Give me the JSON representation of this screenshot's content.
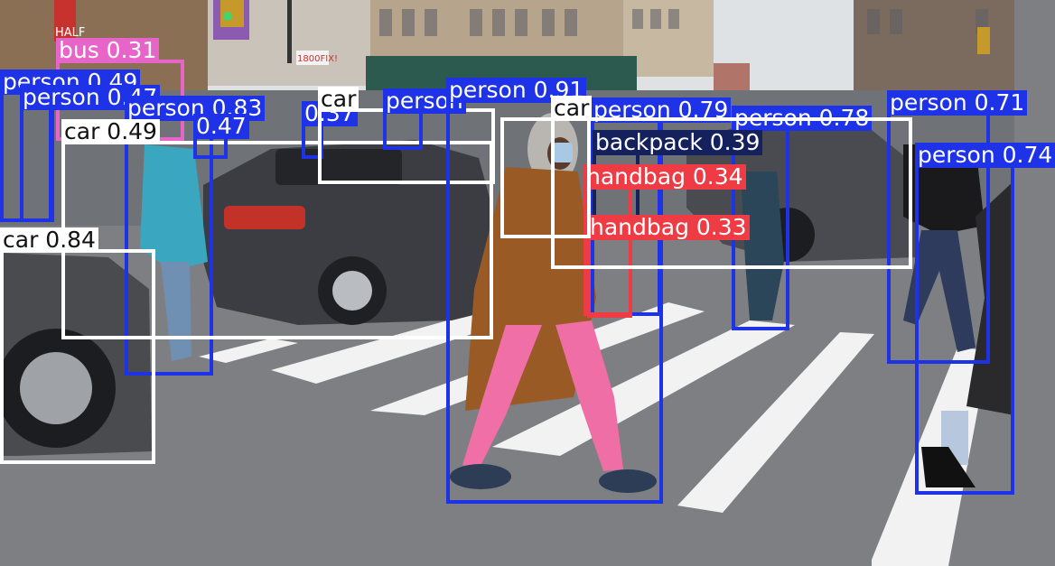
{
  "image": {
    "description_colors": {
      "sky": "#dfe2e5",
      "asphalt": "#7d7f82",
      "stripes": "#f2f2f2"
    }
  },
  "signs": {
    "storefront_1": "HALF",
    "storefront_2": "1800FIX!"
  },
  "detections": [
    {
      "id": "d1",
      "label": "bus 0.31",
      "color": "#e765c9",
      "text": "light",
      "box": "bus-1"
    },
    {
      "id": "d2",
      "label": "person 0.49",
      "color": "#1e32e8",
      "text": "light",
      "box": "person-1"
    },
    {
      "id": "d3",
      "label": "person 0.47",
      "color": "#1e32e8",
      "text": "light",
      "box": "person-2"
    },
    {
      "id": "d4",
      "label": "person 0.83",
      "color": "#1e32e8",
      "text": "light",
      "box": "person-3"
    },
    {
      "id": "d5",
      "label": "car 0.49",
      "color": "#ffffff",
      "text": "dark",
      "box": "car-1"
    },
    {
      "id": "d6",
      "label": "0.47",
      "color": "#1e32e8",
      "text": "light",
      "box": "person-4"
    },
    {
      "id": "d7",
      "label": "0.37",
      "color": "#1e32e8",
      "text": "light",
      "box": "person-5"
    },
    {
      "id": "d8",
      "label": "car",
      "color": "#ffffff",
      "text": "dark",
      "box": "car-2"
    },
    {
      "id": "d9",
      "label": "person",
      "color": "#1e32e8",
      "text": "light",
      "box": "person-6"
    },
    {
      "id": "d10",
      "label": "person 0.91",
      "color": "#1e32e8",
      "text": "light",
      "box": "person-7"
    },
    {
      "id": "d11",
      "label": "person 0.79",
      "color": "#1e32e8",
      "text": "light",
      "box": "person-8"
    },
    {
      "id": "d12",
      "label": "person 0.78",
      "color": "#1e32e8",
      "text": "light",
      "box": "person-9"
    },
    {
      "id": "d13",
      "label": "person 0.71",
      "color": "#1e32e8",
      "text": "light",
      "box": "person-10"
    },
    {
      "id": "d14",
      "label": "person 0.74",
      "color": "#1e32e8",
      "text": "light",
      "box": "person-11"
    },
    {
      "id": "d15",
      "label": "backpack 0.39",
      "color": "#14215c",
      "text": "light",
      "box": "backpack-1"
    },
    {
      "id": "d16",
      "label": "handbag 0.34",
      "color": "#ef3b43",
      "text": "light",
      "box": "handbag-1"
    },
    {
      "id": "d17",
      "label": "handbag 0.33",
      "color": "#ef3b43",
      "text": "light",
      "box": "handbag-2"
    },
    {
      "id": "d18",
      "label": "car 0.84",
      "color": "#ffffff",
      "text": "dark",
      "box": "car-3"
    },
    {
      "id": "d19",
      "label": "car",
      "color": "#ffffff",
      "text": "dark",
      "box": "car-4"
    },
    {
      "id": "d20",
      "label": "",
      "color": "#ffffff",
      "text": "dark",
      "box": "car-5"
    }
  ]
}
